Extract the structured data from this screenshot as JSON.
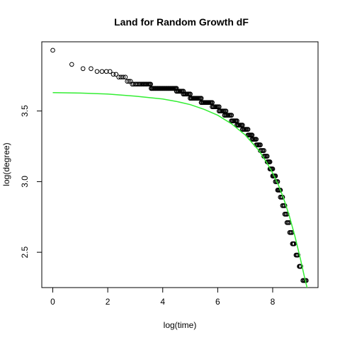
{
  "chart_data": {
    "type": "scatter",
    "title": "Land for Random Growth dF",
    "xlabel": "log(time)",
    "ylabel": "log(degree)",
    "xlim": [
      -0.4,
      9.65
    ],
    "ylim": [
      2.25,
      3.99
    ],
    "x_ticks": [
      0,
      2,
      4,
      6,
      8
    ],
    "y_ticks": [
      2.5,
      3.0,
      3.5
    ],
    "y_tick_labels": [
      "2.5",
      "3.0",
      "3.5"
    ],
    "grid": false,
    "legend": "none",
    "series": [
      {
        "marker": "open-circle",
        "color": "#000000",
        "points": [
          [
            0.0,
            3.93
          ],
          [
            0.69,
            3.83
          ],
          [
            1.1,
            3.8
          ],
          [
            1.39,
            3.8
          ],
          [
            1.61,
            3.78
          ],
          [
            1.79,
            3.78
          ],
          [
            1.95,
            3.78
          ],
          [
            2.08,
            3.78
          ],
          [
            2.2,
            3.76
          ],
          [
            2.3,
            3.76
          ],
          [
            2.4,
            3.74
          ],
          [
            2.48,
            3.74
          ],
          [
            2.56,
            3.74
          ],
          [
            2.64,
            3.74
          ],
          [
            2.71,
            3.71
          ],
          [
            2.77,
            3.71
          ],
          [
            2.83,
            3.71
          ],
          [
            2.89,
            3.69
          ],
          [
            2.94,
            3.69
          ],
          [
            3.0,
            3.69
          ],
          [
            3.04,
            3.69
          ],
          [
            3.09,
            3.69
          ],
          [
            3.14,
            3.69
          ],
          [
            3.18,
            3.69
          ],
          [
            3.22,
            3.69
          ],
          [
            3.26,
            3.69
          ],
          [
            3.3,
            3.69
          ],
          [
            3.33,
            3.69
          ],
          [
            3.37,
            3.69
          ],
          [
            3.4,
            3.69
          ],
          [
            3.43,
            3.69
          ],
          [
            3.47,
            3.69
          ],
          [
            3.5,
            3.69
          ],
          [
            3.53,
            3.69
          ],
          [
            3.56,
            3.69
          ]
        ]
      },
      {
        "marker": "dense-band",
        "color": "#000000",
        "bands": [
          {
            "y": 3.66,
            "x_from": 3.58,
            "x_to": 4.5
          },
          {
            "y": 3.64,
            "x_from": 4.5,
            "x_to": 4.75
          },
          {
            "y": 3.62,
            "x_from": 4.75,
            "x_to": 5.0
          },
          {
            "y": 3.59,
            "x_from": 5.0,
            "x_to": 5.4
          },
          {
            "y": 3.56,
            "x_from": 5.4,
            "x_to": 5.8
          },
          {
            "y": 3.53,
            "x_from": 5.8,
            "x_to": 6.05
          },
          {
            "y": 3.5,
            "x_from": 6.05,
            "x_to": 6.3
          },
          {
            "y": 3.47,
            "x_from": 6.25,
            "x_to": 6.5
          },
          {
            "y": 3.43,
            "x_from": 6.5,
            "x_to": 6.7
          },
          {
            "y": 3.4,
            "x_from": 6.7,
            "x_to": 6.9
          },
          {
            "y": 3.37,
            "x_from": 6.9,
            "x_to": 7.1
          },
          {
            "y": 3.33,
            "x_from": 7.1,
            "x_to": 7.25
          },
          {
            "y": 3.3,
            "x_from": 7.25,
            "x_to": 7.4
          },
          {
            "y": 3.26,
            "x_from": 7.4,
            "x_to": 7.55
          },
          {
            "y": 3.22,
            "x_from": 7.55,
            "x_to": 7.68
          },
          {
            "y": 3.18,
            "x_from": 7.68,
            "x_to": 7.8
          },
          {
            "y": 3.14,
            "x_from": 7.8,
            "x_to": 7.9
          },
          {
            "y": 3.09,
            "x_from": 7.9,
            "x_to": 8.0
          },
          {
            "y": 3.04,
            "x_from": 8.0,
            "x_to": 8.1
          },
          {
            "y": 3.0,
            "x_from": 8.1,
            "x_to": 8.18
          },
          {
            "y": 2.94,
            "x_from": 8.18,
            "x_to": 8.28
          },
          {
            "y": 2.89,
            "x_from": 8.28,
            "x_to": 8.36
          },
          {
            "y": 2.83,
            "x_from": 8.36,
            "x_to": 8.44
          },
          {
            "y": 2.77,
            "x_from": 8.44,
            "x_to": 8.52
          },
          {
            "y": 2.71,
            "x_from": 8.52,
            "x_to": 8.6
          },
          {
            "y": 2.64,
            "x_from": 8.62,
            "x_to": 8.7
          },
          {
            "y": 2.56,
            "x_from": 8.72,
            "x_to": 8.78
          },
          {
            "y": 2.48,
            "x_from": 8.85,
            "x_to": 8.92
          },
          {
            "y": 2.4,
            "x_from": 8.97,
            "x_to": 9.02
          },
          {
            "y": 2.3,
            "x_from": 9.1,
            "x_to": 9.22
          }
        ]
      },
      {
        "type": "line",
        "color": "#33ee33",
        "x": [
          0.0,
          1.0,
          2.0,
          3.0,
          4.0,
          4.5,
          5.0,
          5.5,
          6.0,
          6.5,
          7.0,
          7.5,
          7.8,
          8.0,
          8.2,
          8.4,
          8.6,
          8.8,
          9.0,
          9.15,
          9.3
        ],
        "y": [
          3.63,
          3.627,
          3.62,
          3.605,
          3.585,
          3.568,
          3.545,
          3.512,
          3.47,
          3.41,
          3.33,
          3.22,
          3.13,
          3.06,
          2.98,
          2.88,
          2.76,
          2.62,
          2.46,
          2.33,
          2.21
        ]
      }
    ]
  }
}
